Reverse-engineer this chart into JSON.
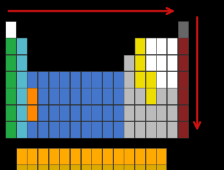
{
  "bg_color": "#000000",
  "colors": {
    "white": "#ffffff",
    "green": "#22aa44",
    "teal": "#55bbcc",
    "blue": "#4477cc",
    "orange": "#ff8800",
    "yellow": "#eedd00",
    "silver": "#bbbbbb",
    "dark_red": "#882222",
    "dark_gray": "#666666",
    "gold": "#ffaa00",
    "light_gold": "#ddaa00"
  },
  "arrow_color": "#cc1111",
  "pt_cells": [
    [
      0,
      0,
      "white"
    ],
    [
      16,
      0,
      "dark_gray"
    ],
    [
      0,
      1,
      "green"
    ],
    [
      1,
      1,
      "teal"
    ],
    [
      12,
      1,
      "yellow"
    ],
    [
      13,
      1,
      "white"
    ],
    [
      14,
      1,
      "white"
    ],
    [
      15,
      1,
      "white"
    ],
    [
      16,
      1,
      "dark_red"
    ],
    [
      0,
      2,
      "green"
    ],
    [
      1,
      2,
      "teal"
    ],
    [
      11,
      2,
      "silver"
    ],
    [
      12,
      2,
      "yellow"
    ],
    [
      13,
      2,
      "white"
    ],
    [
      14,
      2,
      "white"
    ],
    [
      15,
      2,
      "white"
    ],
    [
      16,
      2,
      "dark_red"
    ],
    [
      0,
      3,
      "green"
    ],
    [
      1,
      3,
      "teal"
    ],
    [
      2,
      3,
      "blue"
    ],
    [
      3,
      3,
      "blue"
    ],
    [
      4,
      3,
      "blue"
    ],
    [
      5,
      3,
      "blue"
    ],
    [
      6,
      3,
      "blue"
    ],
    [
      7,
      3,
      "blue"
    ],
    [
      8,
      3,
      "blue"
    ],
    [
      9,
      3,
      "blue"
    ],
    [
      10,
      3,
      "blue"
    ],
    [
      11,
      3,
      "silver"
    ],
    [
      12,
      3,
      "yellow"
    ],
    [
      13,
      3,
      "yellow"
    ],
    [
      14,
      3,
      "white"
    ],
    [
      15,
      3,
      "white"
    ],
    [
      16,
      3,
      "dark_red"
    ],
    [
      0,
      4,
      "green"
    ],
    [
      1,
      4,
      "teal"
    ],
    [
      2,
      4,
      "orange"
    ],
    [
      3,
      4,
      "blue"
    ],
    [
      4,
      4,
      "blue"
    ],
    [
      5,
      4,
      "blue"
    ],
    [
      6,
      4,
      "blue"
    ],
    [
      7,
      4,
      "blue"
    ],
    [
      8,
      4,
      "blue"
    ],
    [
      9,
      4,
      "blue"
    ],
    [
      10,
      4,
      "blue"
    ],
    [
      11,
      4,
      "silver"
    ],
    [
      12,
      4,
      "silver"
    ],
    [
      13,
      4,
      "yellow"
    ],
    [
      14,
      4,
      "silver"
    ],
    [
      15,
      4,
      "silver"
    ],
    [
      16,
      4,
      "dark_red"
    ],
    [
      0,
      5,
      "green"
    ],
    [
      1,
      5,
      "teal"
    ],
    [
      2,
      5,
      "orange"
    ],
    [
      3,
      5,
      "blue"
    ],
    [
      4,
      5,
      "blue"
    ],
    [
      5,
      5,
      "blue"
    ],
    [
      6,
      5,
      "blue"
    ],
    [
      7,
      5,
      "blue"
    ],
    [
      8,
      5,
      "blue"
    ],
    [
      9,
      5,
      "blue"
    ],
    [
      10,
      5,
      "blue"
    ],
    [
      11,
      5,
      "silver"
    ],
    [
      12,
      5,
      "silver"
    ],
    [
      13,
      5,
      "silver"
    ],
    [
      14,
      5,
      "silver"
    ],
    [
      15,
      5,
      "silver"
    ],
    [
      16,
      5,
      "dark_red"
    ],
    [
      0,
      6,
      "green"
    ],
    [
      1,
      6,
      "teal"
    ],
    [
      2,
      6,
      "blue"
    ],
    [
      3,
      6,
      "blue"
    ],
    [
      4,
      6,
      "blue"
    ],
    [
      5,
      6,
      "blue"
    ],
    [
      6,
      6,
      "blue"
    ],
    [
      7,
      6,
      "blue"
    ],
    [
      8,
      6,
      "blue"
    ],
    [
      9,
      6,
      "blue"
    ],
    [
      10,
      6,
      "blue"
    ],
    [
      11,
      6,
      "silver"
    ],
    [
      12,
      6,
      "silver"
    ],
    [
      13,
      6,
      "silver"
    ],
    [
      14,
      6,
      "silver"
    ],
    [
      15,
      6,
      "silver"
    ],
    [
      16,
      6,
      "dark_red"
    ]
  ],
  "la_cells_gold": 14,
  "ac_cells_light_gold": 14
}
